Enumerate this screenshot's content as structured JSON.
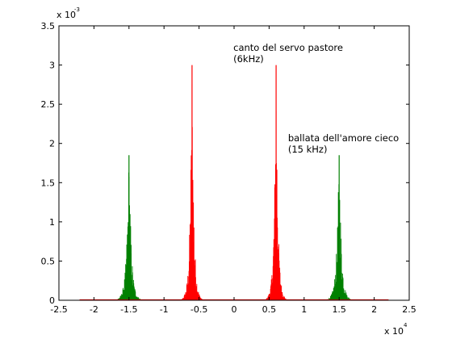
{
  "chart_data": {
    "type": "area",
    "title": "",
    "xlabel": "",
    "ylabel": "",
    "xlim": [
      -25000,
      25000
    ],
    "ylim": [
      0,
      0.0035
    ],
    "x_ticks": [
      -25000,
      -20000,
      -15000,
      -10000,
      -5000,
      0,
      5000,
      10000,
      15000,
      20000,
      25000
    ],
    "x_tick_labels": [
      "-2.5",
      "-2",
      "-1.5",
      "-1",
      "-0.5",
      "0",
      "0.5",
      "1",
      "1.5",
      "2",
      "2.5"
    ],
    "y_ticks": [
      0,
      0.0005,
      0.001,
      0.0015,
      0.002,
      0.0025,
      0.003,
      0.0035
    ],
    "y_tick_labels": [
      "0",
      "0.5",
      "1",
      "1.5",
      "2",
      "2.5",
      "3",
      "3.5"
    ],
    "x_exponent": "x 10",
    "x_exponent_power": "4",
    "y_exponent": "x 10",
    "y_exponent_power": "-3",
    "grid": false,
    "baseline_range": [
      -22050,
      22050
    ],
    "series": [
      {
        "color": "#ff0000",
        "peaks": [
          {
            "center": -6000,
            "max": 0.003,
            "half_width": 1800
          },
          {
            "center": 6000,
            "max": 0.003,
            "half_width": 1800
          }
        ]
      },
      {
        "color": "#008000",
        "peaks": [
          {
            "center": -15000,
            "max": 0.00185,
            "half_width": 2200
          },
          {
            "center": 15000,
            "max": 0.00185,
            "half_width": 2200
          }
        ]
      }
    ],
    "annotations": [
      {
        "lines": [
          "canto del servo pastore",
          "(6kHz)"
        ],
        "x": -100,
        "y": 0.00318
      },
      {
        "lines": [
          "ballata dell'amore cieco",
          "(15 kHz)"
        ],
        "x": 7700,
        "y": 0.00203
      }
    ]
  }
}
